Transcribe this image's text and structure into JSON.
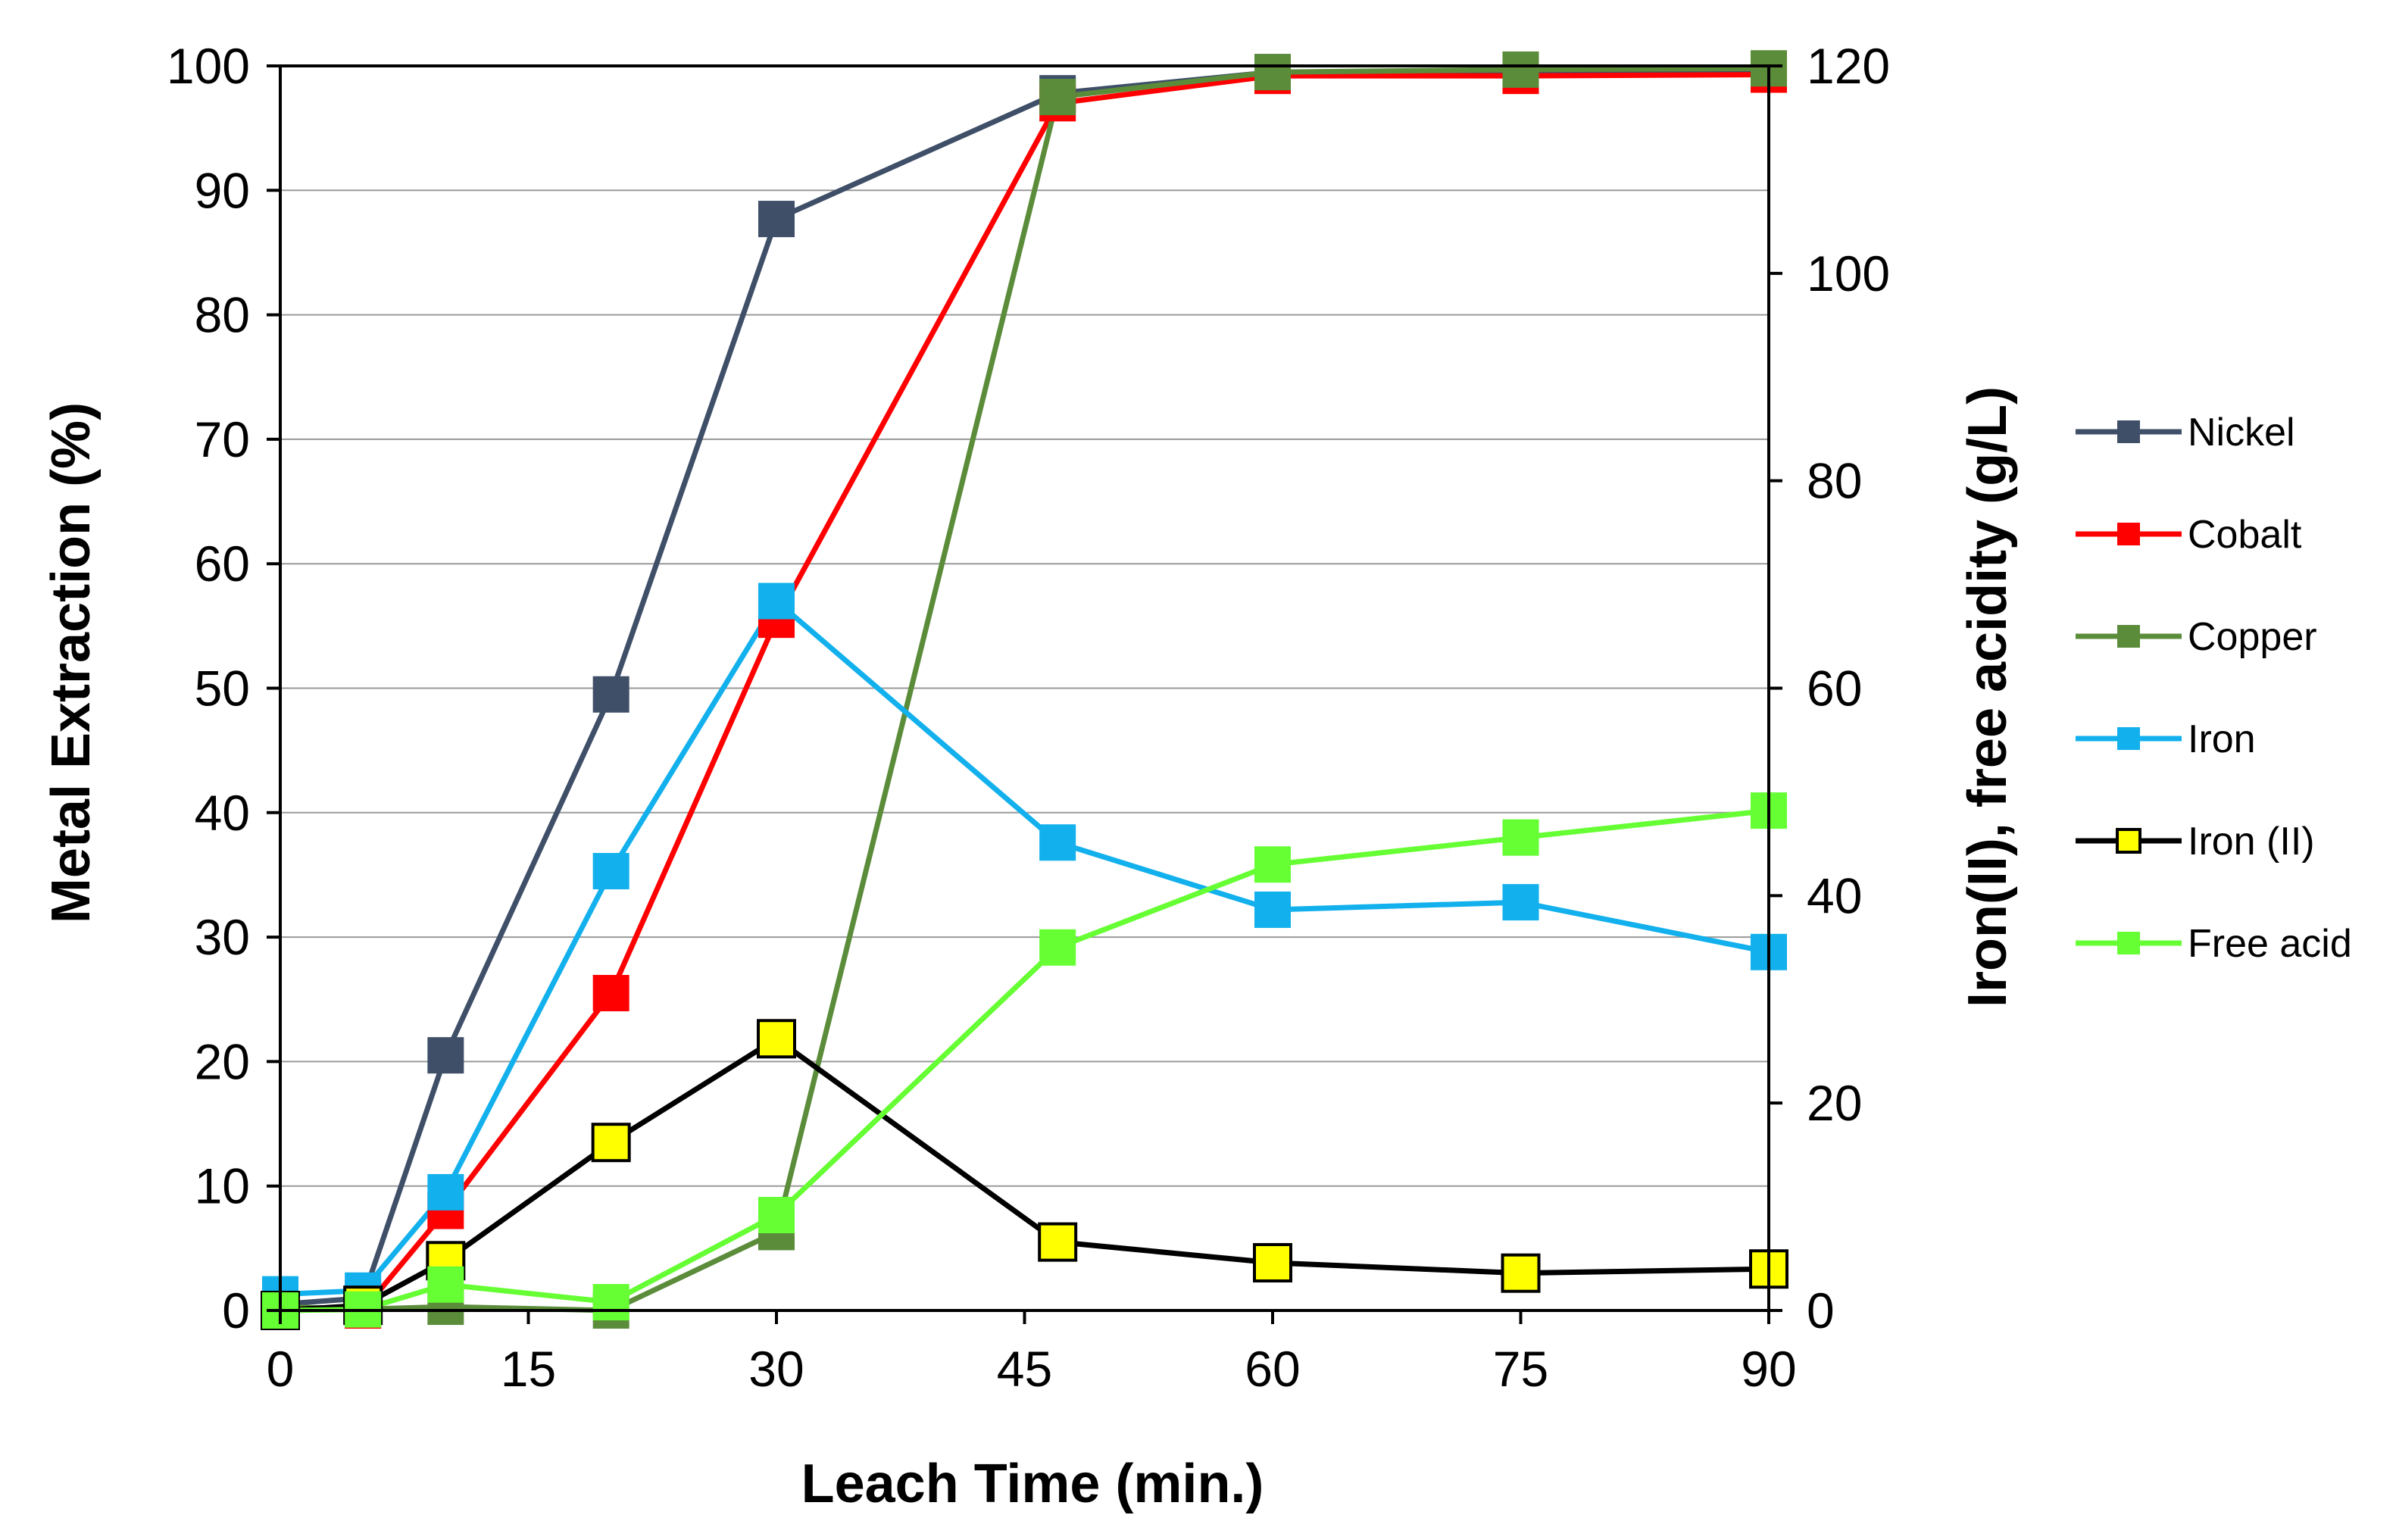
{
  "chart_data": {
    "type": "line",
    "title": "",
    "xlabel": "Leach Time (min.)",
    "ylabel": "Metal Extraction (%)",
    "y2label": "Iron(II), free acidity (g/L)",
    "xlim": [
      0,
      90
    ],
    "ylim": [
      0,
      100
    ],
    "y2lim": [
      0,
      120
    ],
    "xticks": [
      "0",
      "15",
      "30",
      "45",
      "60",
      "75",
      "90"
    ],
    "yticks": [
      "0",
      "10",
      "20",
      "30",
      "40",
      "50",
      "60",
      "70",
      "80",
      "90",
      "100"
    ],
    "y2ticks": [
      "0",
      "20",
      "40",
      "60",
      "80",
      "100",
      "120"
    ],
    "grid": "horizontal",
    "legend_position": "right",
    "x": [
      0,
      5,
      10,
      20,
      30,
      47,
      60,
      75,
      90
    ],
    "series": [
      {
        "name": "Nickel",
        "axis": "left",
        "color": "#3f4f68",
        "marker": "filled-square",
        "values": [
          0.5,
          1.0,
          20.5,
          49.5,
          87.7,
          97.8,
          99.5,
          99.6,
          99.7
        ]
      },
      {
        "name": "Cobalt",
        "axis": "left",
        "color": "#ff0000",
        "marker": "filled-square",
        "values": [
          0.3,
          0.0,
          8.0,
          25.5,
          55.5,
          97.0,
          99.2,
          99.2,
          99.3
        ]
      },
      {
        "name": "Copper",
        "axis": "left",
        "color": "#5b8c3a",
        "marker": "filled-square",
        "values": [
          0.3,
          0.1,
          0.3,
          0.0,
          6.3,
          97.5,
          99.5,
          99.7,
          99.8
        ]
      },
      {
        "name": "Iron",
        "axis": "left",
        "color": "#12b0ec",
        "marker": "filled-square",
        "values": [
          1.3,
          1.6,
          9.5,
          35.3,
          57.0,
          37.6,
          32.2,
          32.8,
          28.8
        ]
      },
      {
        "name": "Iron (II)",
        "axis": "right",
        "color": "#000000",
        "marker_fill": "#ffff00",
        "marker": "outlined-square",
        "values": [
          0.0,
          0.5,
          4.8,
          16.2,
          26.2,
          6.6,
          4.6,
          3.6,
          4.0
        ]
      },
      {
        "name": "Free acid",
        "axis": "right",
        "color": "#66ff33",
        "marker": "filled-square",
        "values": [
          0.0,
          0.1,
          2.5,
          0.8,
          9.2,
          35.0,
          43.0,
          45.6,
          48.2
        ]
      }
    ]
  }
}
